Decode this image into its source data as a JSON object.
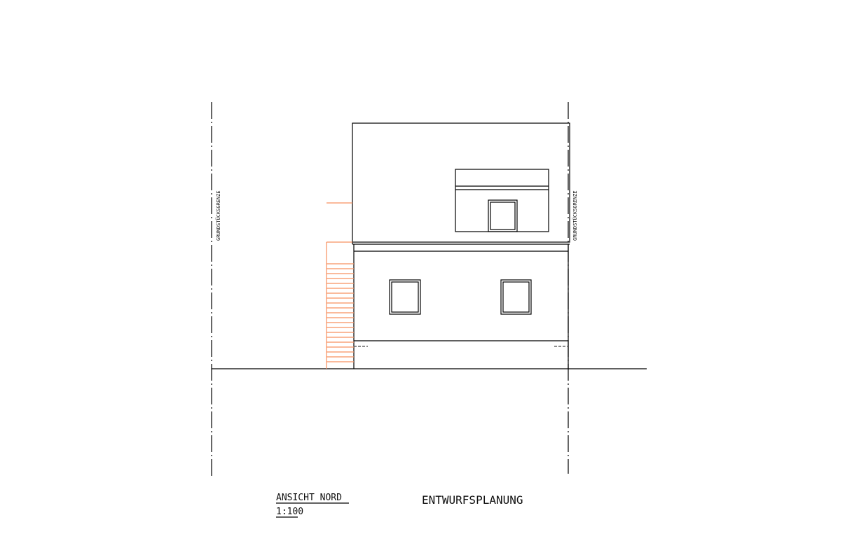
{
  "drawing": {
    "boundary_label_left": "GRUNDSTÜCKSGRENZE",
    "boundary_label_right": "GRUNDSTÜCKSGRENZE",
    "view_title": "ANSICHT NORD",
    "scale": "1:100",
    "phase": "ENTWURFSPLANUNG",
    "colors": {
      "lines": "#000000",
      "stair": "#f7905f",
      "hidden_lines": "#666666"
    }
  }
}
